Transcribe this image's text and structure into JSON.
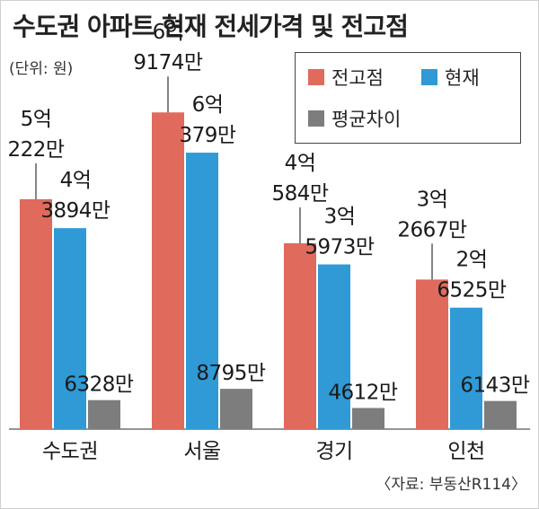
{
  "title": "수도권 아파트 현재 전세가격 및 전고점",
  "unit_label": "(단위: 원)",
  "source": "〈자료: 부동산R114〉",
  "colors": {
    "peak": "#e06a5c",
    "current": "#2f9ad6",
    "diff": "#7d7d7d"
  },
  "chart_data": {
    "type": "bar",
    "categories": [
      "수도권",
      "서울",
      "경기",
      "인천"
    ],
    "unit": "만원",
    "series": [
      {
        "name": "전고점",
        "values": [
          50222,
          69174,
          40584,
          32667
        ],
        "labels": [
          [
            "5억",
            "222만"
          ],
          [
            "6억",
            "9174만"
          ],
          [
            "4억",
            "584만"
          ],
          [
            "3억",
            "2667만"
          ]
        ]
      },
      {
        "name": "현재",
        "values": [
          43894,
          60379,
          35973,
          26525
        ],
        "labels": [
          [
            "4억",
            "3894만"
          ],
          [
            "6억",
            "379만"
          ],
          [
            "3억",
            "5973만"
          ],
          [
            "2억",
            "6525만"
          ]
        ]
      },
      {
        "name": "평균차이",
        "values": [
          6328,
          8795,
          4612,
          6143
        ],
        "labels": [
          [
            "6328만"
          ],
          [
            "8795만"
          ],
          [
            "4612만"
          ],
          [
            "6143만"
          ]
        ]
      }
    ],
    "ylim": [
      0,
      80000
    ],
    "grid": false,
    "legend_position": "top-right"
  }
}
